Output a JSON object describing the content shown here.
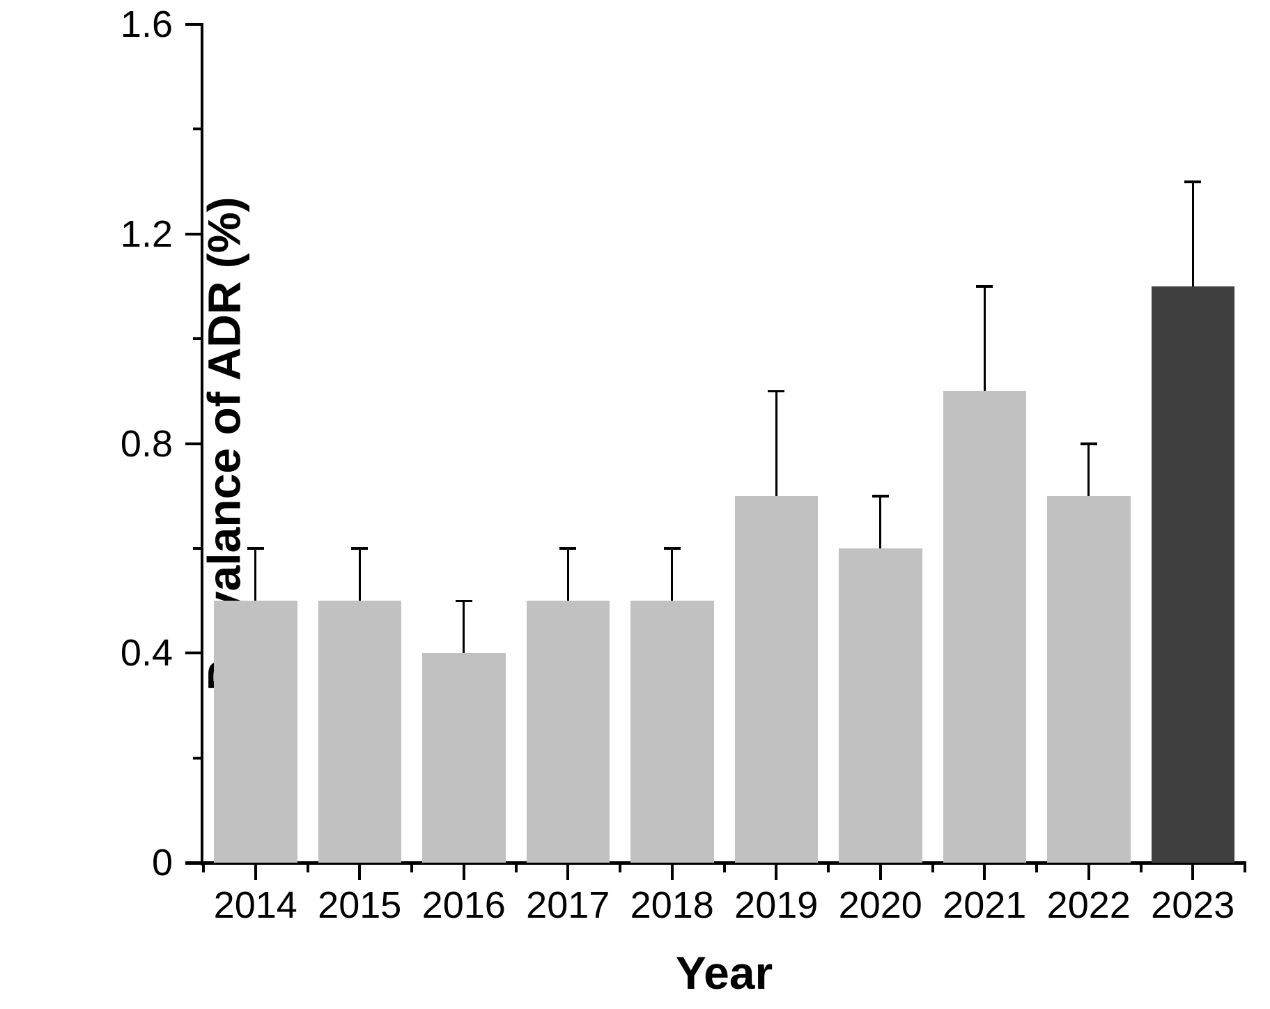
{
  "chart_data": {
    "type": "bar",
    "title": "",
    "xlabel": "Year",
    "ylabel": "Prevalance of ADR (%)",
    "categories": [
      "2014",
      "2015",
      "2016",
      "2017",
      "2018",
      "2019",
      "2020",
      "2021",
      "2022",
      "2023"
    ],
    "values": [
      0.5,
      0.5,
      0.4,
      0.5,
      0.5,
      0.7,
      0.6,
      0.9,
      0.7,
      1.1
    ],
    "error_plus": [
      0.1,
      0.1,
      0.1,
      0.1,
      0.1,
      0.2,
      0.1,
      0.2,
      0.1,
      0.2
    ],
    "ylim": [
      0,
      1.6
    ],
    "y_major_tick_values": [
      0,
      0.4,
      0.8,
      1.2,
      1.6
    ],
    "y_major_tick_labels": [
      "0",
      "0.4",
      "0.8",
      "1.2",
      "1.6"
    ],
    "y_minor_tick_values": [
      0.2,
      0.6,
      1.0,
      1.4
    ],
    "grid": "off",
    "legend": "none",
    "bar_color": "#c1c1c1",
    "highlight_index": 9,
    "highlight_color": "#404040",
    "axis_color": "#000000",
    "background_color": "#ffffff"
  }
}
